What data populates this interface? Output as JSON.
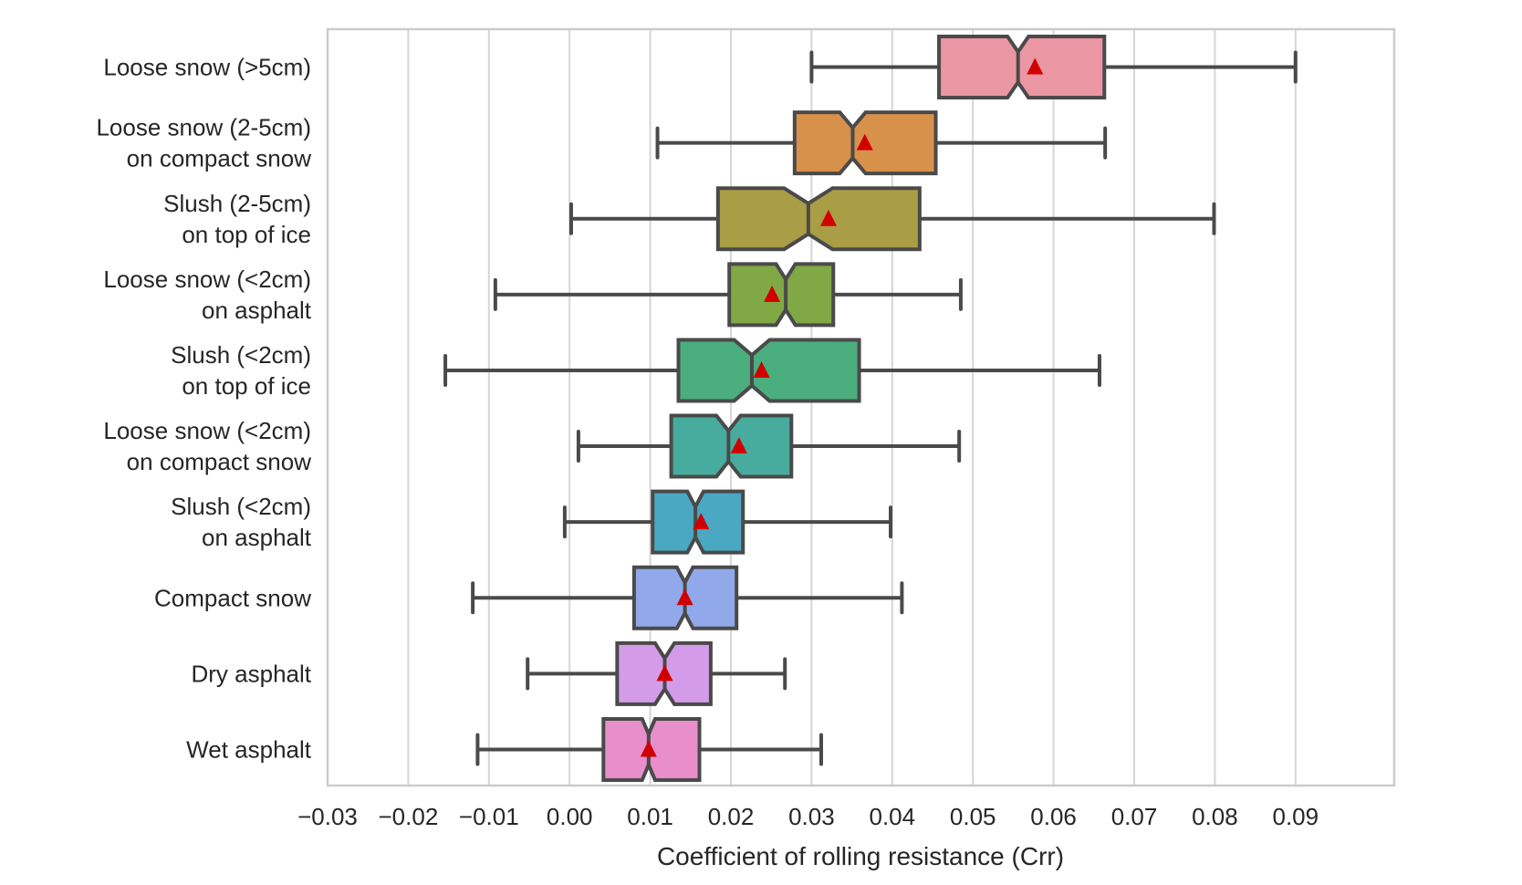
{
  "chart_data": {
    "type": "boxplot",
    "orientation": "horizontal",
    "notched": true,
    "show_means": true,
    "title": "",
    "xlabel": "Coefficient of rolling resistance (Crr)",
    "ylabel": "",
    "xlim": [
      -0.03,
      0.1
    ],
    "xticks": [
      -0.03,
      -0.02,
      -0.01,
      0.0,
      0.01,
      0.02,
      0.03,
      0.04,
      0.05,
      0.06,
      0.07,
      0.08,
      0.09
    ],
    "xtick_labels": [
      "−0.03",
      "−0.02",
      "−0.01",
      "0.00",
      "0.01",
      "0.02",
      "0.03",
      "0.04",
      "0.05",
      "0.06",
      "0.07",
      "0.08",
      "0.09"
    ],
    "grid": "vertical",
    "mean_marker_color": "#d10000",
    "edge_color": "#4a4a4a",
    "categories": [
      {
        "label": [
          "Loose snow (>5cm)"
        ],
        "whislo": 0.03,
        "q1": 0.0458,
        "med": 0.0556,
        "q3": 0.0663,
        "whishi": 0.09,
        "mean": 0.0577,
        "notch": 0.0013,
        "color": "#ea96a3"
      },
      {
        "label": [
          "Loose snow (2-5cm)",
          "on compact snow"
        ],
        "whislo": 0.0109,
        "q1": 0.0279,
        "med": 0.0351,
        "q3": 0.0454,
        "whishi": 0.0664,
        "mean": 0.0366,
        "notch": 0.0016,
        "color": "#d8914b"
      },
      {
        "label": [
          "Slush (2-5cm)",
          "on top of ice"
        ],
        "whislo": 0.0002,
        "q1": 0.0184,
        "med": 0.0296,
        "q3": 0.0434,
        "whishi": 0.0799,
        "mean": 0.0321,
        "notch": 0.003,
        "color": "#a99d45"
      },
      {
        "label": [
          "Loose snow (<2cm)",
          "on asphalt"
        ],
        "whislo": -0.0092,
        "q1": 0.0198,
        "med": 0.0268,
        "q3": 0.0327,
        "whishi": 0.0485,
        "mean": 0.0251,
        "notch": 0.0012,
        "color": "#80a845"
      },
      {
        "label": [
          "Slush (<2cm)",
          "on top of ice"
        ],
        "whislo": -0.0154,
        "q1": 0.0135,
        "med": 0.0226,
        "q3": 0.0359,
        "whishi": 0.0657,
        "mean": 0.0238,
        "notch": 0.0022,
        "color": "#4aae7e"
      },
      {
        "label": [
          "Loose snow (<2cm)",
          "on compact snow"
        ],
        "whislo": 0.0011,
        "q1": 0.0126,
        "med": 0.0197,
        "q3": 0.0275,
        "whishi": 0.0483,
        "mean": 0.021,
        "notch": 0.0015,
        "color": "#47ac9d"
      },
      {
        "label": [
          "Slush (<2cm)",
          "on asphalt"
        ],
        "whislo": -0.0006,
        "q1": 0.0103,
        "med": 0.0156,
        "q3": 0.0215,
        "whishi": 0.0398,
        "mean": 0.0163,
        "notch": 0.001,
        "color": "#4aa8c3"
      },
      {
        "label": [
          "Compact snow"
        ],
        "whislo": -0.012,
        "q1": 0.008,
        "med": 0.0143,
        "q3": 0.0207,
        "whishi": 0.0412,
        "mean": 0.0143,
        "notch": 0.001,
        "color": "#91a9ea"
      },
      {
        "label": [
          "Dry asphalt"
        ],
        "whislo": -0.0052,
        "q1": 0.0059,
        "med": 0.0118,
        "q3": 0.0175,
        "whishi": 0.0267,
        "mean": 0.0118,
        "notch": 0.0012,
        "color": "#d49ce8"
      },
      {
        "label": [
          "Wet asphalt"
        ],
        "whislo": -0.0114,
        "q1": 0.0042,
        "med": 0.0098,
        "q3": 0.0161,
        "whishi": 0.0312,
        "mean": 0.0098,
        "notch": 0.0008,
        "color": "#e88fcb"
      }
    ]
  }
}
